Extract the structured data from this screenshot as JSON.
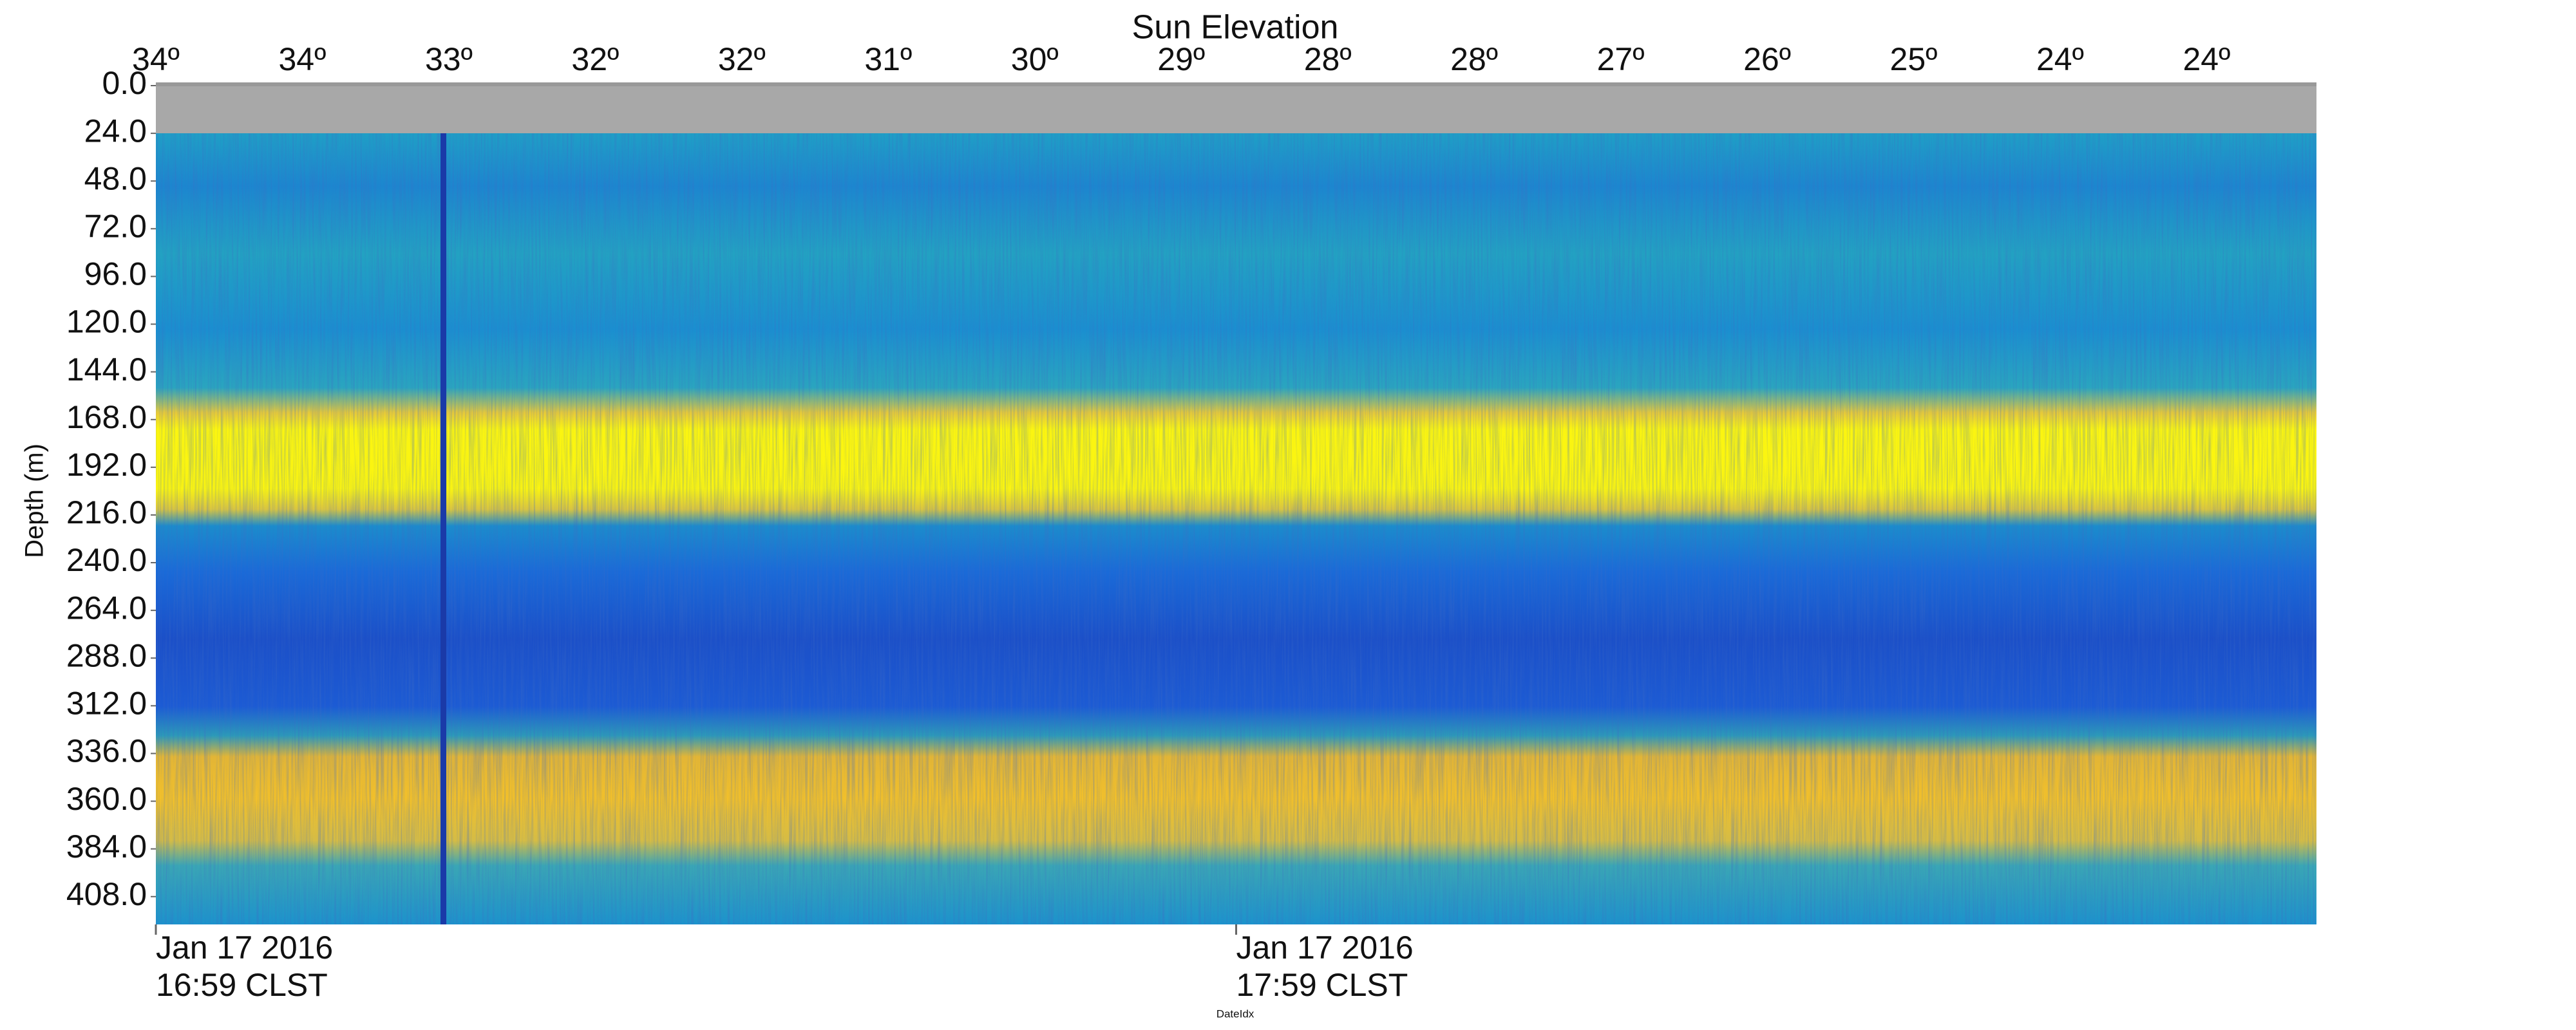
{
  "chart_data": {
    "type": "heatmap",
    "title": "Sun Elevation",
    "top_labels": [
      "34º",
      "34º",
      "33º",
      "32º",
      "32º",
      "31º",
      "30º",
      "29º",
      "28º",
      "28º",
      "27º",
      "26º",
      "25º",
      "24º",
      "24º"
    ],
    "y_label": "Depth (m)",
    "ylim": [
      0,
      422
    ],
    "yticks": [
      {
        "value": 0,
        "label": "0.0"
      },
      {
        "value": 24,
        "label": "24.0"
      },
      {
        "value": 48,
        "label": "48.0"
      },
      {
        "value": 72,
        "label": "72.0"
      },
      {
        "value": 96,
        "label": "96.0"
      },
      {
        "value": 120,
        "label": "120.0"
      },
      {
        "value": 144,
        "label": "144.0"
      },
      {
        "value": 168,
        "label": "168.0"
      },
      {
        "value": 192,
        "label": "192.0"
      },
      {
        "value": 216,
        "label": "216.0"
      },
      {
        "value": 240,
        "label": "240.0"
      },
      {
        "value": 264,
        "label": "264.0"
      },
      {
        "value": 288,
        "label": "288.0"
      },
      {
        "value": 312,
        "label": "312.0"
      },
      {
        "value": 336,
        "label": "336.0"
      },
      {
        "value": 360,
        "label": "360.0"
      },
      {
        "value": 384,
        "label": "384.0"
      },
      {
        "value": 408,
        "label": "408.0"
      }
    ],
    "x_label": "DateIdx",
    "x_ticks": [
      {
        "date": "Jan 17 2016",
        "time": "16:59 CLST"
      },
      {
        "date": "Jan 17 2016",
        "time": "17:59 CLST"
      }
    ]
  }
}
